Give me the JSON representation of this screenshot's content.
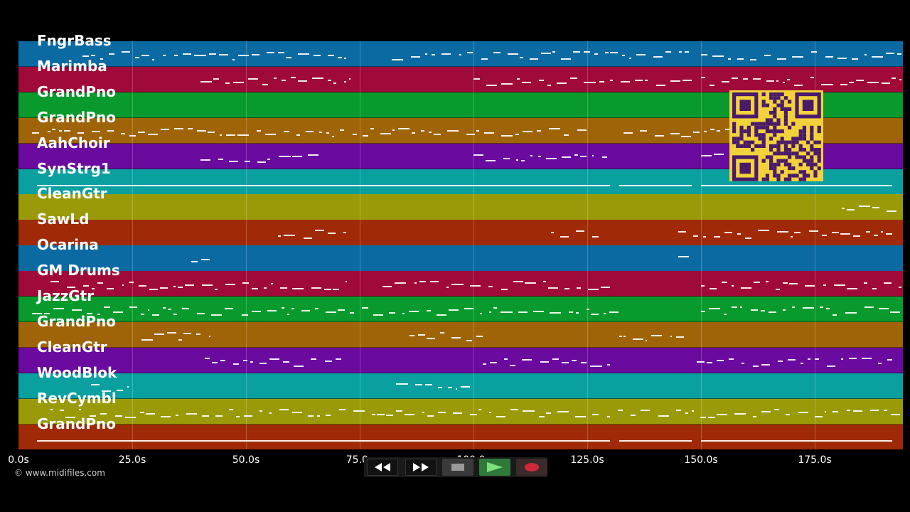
{
  "tracks": [
    {
      "name": "FngrBass",
      "color": "#0c6aa2"
    },
    {
      "name": "Marimba",
      "color": "#a00a38"
    },
    {
      "name": "GrandPno",
      "color": "#089a2c"
    },
    {
      "name": "GrandPno",
      "color": "#a06408"
    },
    {
      "name": "AahChoir",
      "color": "#6a0a9e"
    },
    {
      "name": "SynStrg1",
      "color": "#0aa0a0"
    },
    {
      "name": "CleanGtr",
      "color": "#9a9a08"
    },
    {
      "name": "SawLd",
      "color": "#a02a08"
    },
    {
      "name": "Ocarina",
      "color": "#0c6aa2"
    },
    {
      "name": "GM Drums",
      "color": "#a00a38"
    },
    {
      "name": "JazzGtr",
      "color": "#089a2c"
    },
    {
      "name": "GrandPno",
      "color": "#a06408"
    },
    {
      "name": "CleanGtr",
      "color": "#6a0a9e"
    },
    {
      "name": "WoodBlok",
      "color": "#0aa0a0"
    },
    {
      "name": "RevCymbl",
      "color": "#9a9a08"
    },
    {
      "name": "GrandPno",
      "color": "#a02a08"
    }
  ],
  "timeline": {
    "ticks": [
      "0.0s",
      "25.0s",
      "50.0s",
      "75.0s",
      "100.0s",
      "125.0s",
      "150.0s",
      "175.0s"
    ],
    "tick_values": [
      0,
      25,
      50,
      75,
      100,
      125,
      150,
      175
    ],
    "max_seconds": 194
  },
  "copyright": "© www.midifiles.com",
  "transport": {
    "rewind": "rewind-icon",
    "fast_forward": "fast-forward-icon",
    "stop": "stop-icon",
    "play": "play-icon",
    "record": "record-icon"
  },
  "qr_code": "qr-code-icon",
  "colors": {
    "background": "#000000",
    "qr_background": "#f2d23a",
    "qr_foreground": "#4a1a6a",
    "play": "#3aa04a",
    "record": "#d0283a"
  }
}
